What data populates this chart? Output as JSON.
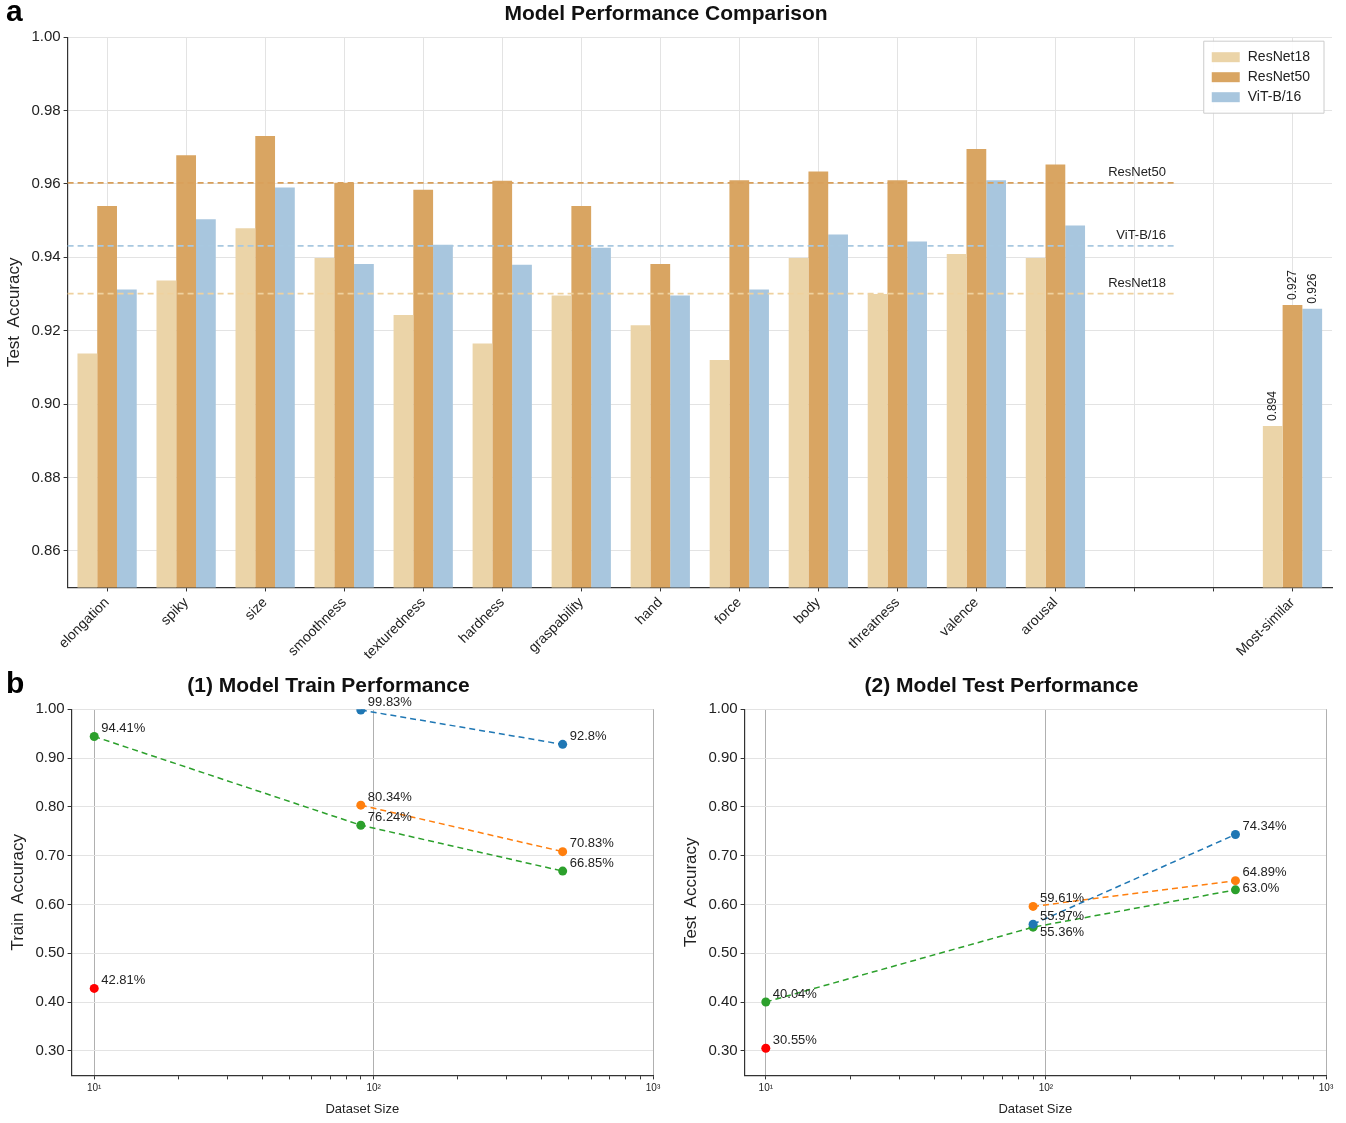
{
  "chart_data": [
    {
      "type": "bar",
      "title": "Model Performance Comparison",
      "ylabel": "Test  Accuracy",
      "annotations": [
        "a"
      ],
      "categories": [
        "elongation",
        "spiky",
        "size",
        "smoothness",
        "texturedness",
        "hardness",
        "graspability",
        "hand",
        "force",
        "body",
        "threatness",
        "valence",
        "arousal",
        null,
        null,
        "Most-similar"
      ],
      "series": [
        {
          "name": "ResNet18",
          "color": "#ebd4a8",
          "values": [
            0.9138,
            0.9337,
            0.9479,
            0.9398,
            0.9243,
            0.9165,
            0.9296,
            0.9215,
            0.912,
            0.9398,
            0.93,
            0.9409,
            0.9398,
            null,
            null,
            0.894
          ],
          "value_labels": [
            null,
            null,
            null,
            null,
            null,
            null,
            null,
            null,
            null,
            null,
            null,
            null,
            null,
            null,
            null,
            "0.894"
          ]
        },
        {
          "name": "ResNet50",
          "color": "#d9a562",
          "values": [
            0.954,
            0.9678,
            0.9731,
            0.9603,
            0.9584,
            0.9609,
            0.954,
            0.9382,
            0.961,
            0.9634,
            0.961,
            0.9695,
            0.9653,
            null,
            null,
            0.927
          ],
          "value_labels": [
            null,
            null,
            null,
            null,
            null,
            null,
            null,
            null,
            null,
            null,
            null,
            null,
            null,
            null,
            null,
            "0.927"
          ]
        },
        {
          "name": "ViT-B/16",
          "color": "#a8c6de",
          "values": [
            0.9312,
            0.9504,
            0.959,
            0.9382,
            0.9434,
            0.938,
            0.9426,
            0.9296,
            0.9312,
            0.9462,
            0.9443,
            0.961,
            0.9487,
            null,
            null,
            0.926
          ],
          "value_labels": [
            null,
            null,
            null,
            null,
            null,
            null,
            null,
            null,
            null,
            null,
            null,
            null,
            null,
            null,
            null,
            "0.926"
          ]
        }
      ],
      "ylim": [
        0.85,
        1.0
      ],
      "yticks": [
        0.86,
        0.88,
        {
          "value": 0.9,
          "label": "0.90"
        },
        0.92,
        0.94,
        0.96,
        0.98,
        {
          "value": 1.0,
          "label": "1.00"
        }
      ],
      "ref_lines": [
        {
          "axis": "y",
          "value": 0.9603,
          "label": "ResNet50",
          "color": "#d9a05b",
          "line_style": "dashed"
        },
        {
          "axis": "y",
          "value": 0.9431,
          "label": "ViT-B/16",
          "color": "#a8c8e0",
          "line_style": "dashed"
        },
        {
          "axis": "y",
          "value": 0.9301,
          "label": "ResNet18",
          "color": "#efd19e",
          "line_style": "dashed"
        }
      ],
      "grid": true,
      "legend": "top right"
    },
    {
      "type": "line",
      "title": "(1) Model Train Performance",
      "xlabel": "Dataset Size",
      "ylabel": "Train  Accuracy",
      "annotations": [
        "b"
      ],
      "series": [
        {
          "type": "line",
          "color": "#1f77b4",
          "x": [
            90,
            475
          ],
          "values": [
            0.9983,
            0.928
          ],
          "value_labels": [
            "99.83%",
            "92.8%"
          ]
        },
        {
          "type": "line",
          "color": "#ff7f0e",
          "x": [
            90,
            475
          ],
          "values": [
            0.8034,
            0.7083
          ],
          "value_labels": [
            "80.34%",
            "70.83%"
          ]
        },
        {
          "type": "line",
          "color": "#2ca02c",
          "x": [
            10,
            90,
            475
          ],
          "values": [
            0.9441,
            0.7624,
            0.6685
          ],
          "value_labels": [
            "94.41%",
            "76.24%",
            "66.85%"
          ]
        },
        {
          "type": "scatter",
          "color": "#ff0000",
          "x": [
            10
          ],
          "values": [
            0.4281
          ],
          "value_labels": [
            "42.81%"
          ]
        }
      ],
      "log": "x",
      "xlim": [
        8.3,
        1000
      ],
      "xticks": [
        {
          "value": 10,
          "label": "10¹"
        },
        {
          "value": 20,
          "label": null
        },
        {
          "value": 30,
          "label": null
        },
        {
          "value": 40,
          "label": null
        },
        {
          "value": 50,
          "label": null
        },
        {
          "value": 60,
          "label": null
        },
        {
          "value": 70,
          "label": null
        },
        {
          "value": 80,
          "label": null
        },
        {
          "value": 90,
          "label": null
        },
        {
          "value": 100,
          "label": "10²"
        },
        {
          "value": 200,
          "label": null
        },
        {
          "value": 300,
          "label": null
        },
        {
          "value": 400,
          "label": null
        },
        {
          "value": 500,
          "label": null
        },
        {
          "value": 600,
          "label": null
        },
        {
          "value": 700,
          "label": null
        },
        {
          "value": 800,
          "label": null
        },
        {
          "value": 900,
          "label": null
        },
        {
          "value": 1000,
          "label": "10³"
        }
      ],
      "ylim": [
        0.25,
        1.0
      ],
      "yticks": [
        {
          "value": 0.3,
          "label": "0.30"
        },
        {
          "value": 0.4,
          "label": "0.40"
        },
        {
          "value": 0.5,
          "label": "0.50"
        },
        {
          "value": 0.6,
          "label": "0.60"
        },
        {
          "value": 0.7,
          "label": "0.70"
        },
        {
          "value": 0.8,
          "label": "0.80"
        },
        {
          "value": 0.9,
          "label": "0.90"
        },
        {
          "value": 1.0,
          "label": "1.00"
        }
      ],
      "grid": true,
      "marker": "circle",
      "line_style": "dashed"
    },
    {
      "type": "line",
      "title": "(2) Model Test Performance",
      "xlabel": "Dataset Size",
      "ylabel": "Test  Accuracy",
      "series": [
        {
          "type": "line",
          "color": "#1f77b4",
          "x": [
            90,
            475
          ],
          "values": [
            0.5597,
            0.7434
          ],
          "value_labels": [
            "55.97%",
            "74.34%"
          ]
        },
        {
          "type": "line",
          "color": "#ff7f0e",
          "x": [
            90,
            475
          ],
          "values": [
            0.5961,
            0.6489
          ],
          "value_labels": [
            "59.61%",
            "64.89%"
          ]
        },
        {
          "type": "line",
          "color": "#2ca02c",
          "x": [
            10,
            90,
            475
          ],
          "values": [
            0.4004,
            0.5536,
            0.63
          ],
          "value_labels": [
            "40.04%",
            "55.36%",
            "63.0%"
          ]
        },
        {
          "type": "scatter",
          "color": "#ff0000",
          "x": [
            10
          ],
          "values": [
            0.3055
          ],
          "value_labels": [
            "30.55%"
          ]
        }
      ],
      "log": "x",
      "xlim": [
        8.4,
        1000
      ],
      "xticks": [
        {
          "value": 10,
          "label": "10¹"
        },
        {
          "value": 20,
          "label": null
        },
        {
          "value": 30,
          "label": null
        },
        {
          "value": 40,
          "label": null
        },
        {
          "value": 50,
          "label": null
        },
        {
          "value": 60,
          "label": null
        },
        {
          "value": 70,
          "label": null
        },
        {
          "value": 80,
          "label": null
        },
        {
          "value": 90,
          "label": null
        },
        {
          "value": 100,
          "label": "10²"
        },
        {
          "value": 200,
          "label": null
        },
        {
          "value": 300,
          "label": null
        },
        {
          "value": 400,
          "label": null
        },
        {
          "value": 500,
          "label": null
        },
        {
          "value": 600,
          "label": null
        },
        {
          "value": 700,
          "label": null
        },
        {
          "value": 800,
          "label": null
        },
        {
          "value": 900,
          "label": null
        },
        {
          "value": 1000,
          "label": "10³"
        }
      ],
      "ylim": [
        0.25,
        1.0
      ],
      "yticks": [
        {
          "value": 0.3,
          "label": "0.30"
        },
        {
          "value": 0.4,
          "label": "0.40"
        },
        {
          "value": 0.5,
          "label": "0.50"
        },
        {
          "value": 0.6,
          "label": "0.60"
        },
        {
          "value": 0.7,
          "label": "0.70"
        },
        {
          "value": 0.8,
          "label": "0.80"
        },
        {
          "value": 0.9,
          "label": "0.90"
        },
        {
          "value": 1.0,
          "label": "1.00"
        }
      ],
      "grid": true,
      "marker": "circle",
      "line_style": "dashed"
    }
  ]
}
